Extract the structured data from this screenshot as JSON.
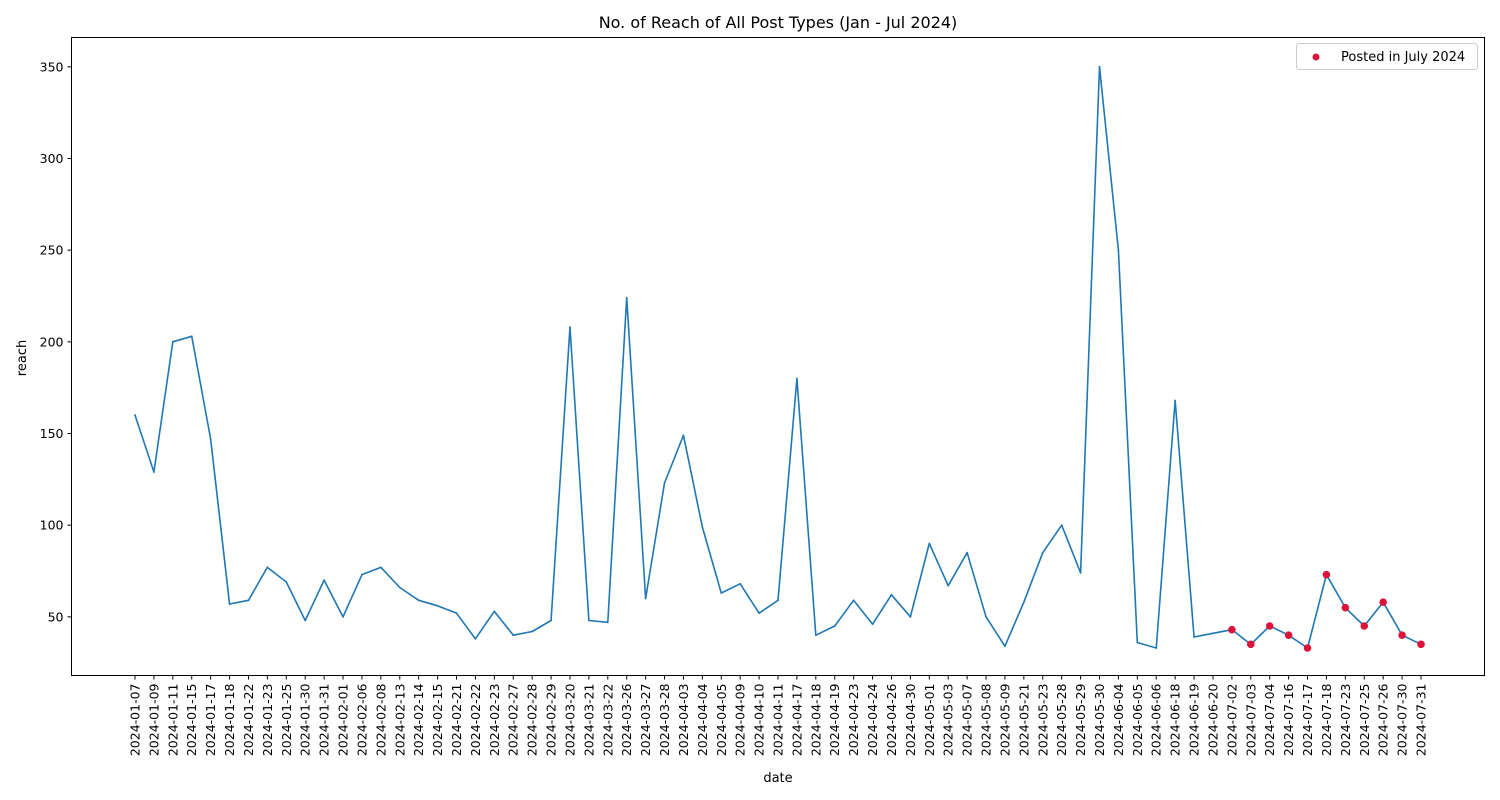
{
  "chart_data": {
    "type": "line",
    "title": "No. of Reach of All Post Types (Jan - Jul 2024)",
    "xlabel": "date",
    "ylabel": "reach",
    "ylim": [
      18,
      366
    ],
    "yticks": [
      50,
      100,
      150,
      200,
      250,
      300,
      350
    ],
    "grid": false,
    "legend_position": "top-right",
    "x": [
      "2024-01-07",
      "2024-01-09",
      "2024-01-11",
      "2024-01-15",
      "2024-01-17",
      "2024-01-18",
      "2024-01-22",
      "2024-01-23",
      "2024-01-25",
      "2024-01-30",
      "2024-01-31",
      "2024-02-01",
      "2024-02-06",
      "2024-02-08",
      "2024-02-13",
      "2024-02-14",
      "2024-02-15",
      "2024-02-21",
      "2024-02-22",
      "2024-02-23",
      "2024-02-27",
      "2024-02-28",
      "2024-02-29",
      "2024-03-20",
      "2024-03-21",
      "2024-03-22",
      "2024-03-26",
      "2024-03-27",
      "2024-03-28",
      "2024-04-03",
      "2024-04-04",
      "2024-04-05",
      "2024-04-09",
      "2024-04-10",
      "2024-04-11",
      "2024-04-17",
      "2024-04-18",
      "2024-04-19",
      "2024-04-23",
      "2024-04-24",
      "2024-04-26",
      "2024-04-30",
      "2024-05-01",
      "2024-05-03",
      "2024-05-07",
      "2024-05-08",
      "2024-05-09",
      "2024-05-21",
      "2024-05-23",
      "2024-05-28",
      "2024-05-29",
      "2024-05-30",
      "2024-06-04",
      "2024-06-05",
      "2024-06-06",
      "2024-06-18",
      "2024-06-19",
      "2024-06-20",
      "2024-07-02",
      "2024-07-03",
      "2024-07-04",
      "2024-07-16",
      "2024-07-17",
      "2024-07-18",
      "2024-07-23",
      "2024-07-25",
      "2024-07-26",
      "2024-07-30",
      "2024-07-31"
    ],
    "series": [
      {
        "values": [
          160,
          129,
          200,
          203,
          147,
          57,
          59,
          77,
          69,
          48,
          70,
          50,
          73,
          77,
          66,
          59,
          56,
          52,
          38,
          53,
          40,
          42,
          48,
          208,
          48,
          47,
          224,
          60,
          123,
          149,
          99,
          63,
          68,
          52,
          59,
          180,
          40,
          45,
          59,
          46,
          62,
          50,
          90,
          67,
          85,
          50,
          34,
          58,
          85,
          100,
          74,
          350,
          250,
          36,
          33,
          168,
          39,
          41,
          43,
          35,
          45,
          40,
          33,
          73,
          55,
          45,
          58,
          40,
          35
        ],
        "color": "#1f77b4"
      }
    ],
    "highlight": {
      "name": "Posted in July 2024",
      "color": "#dc143c",
      "x": [
        "2024-07-02",
        "2024-07-03",
        "2024-07-04",
        "2024-07-16",
        "2024-07-17",
        "2024-07-18",
        "2024-07-23",
        "2024-07-25",
        "2024-07-26",
        "2024-07-30",
        "2024-07-31"
      ],
      "values": [
        43,
        35,
        45,
        40,
        33,
        73,
        55,
        45,
        58,
        40,
        35
      ]
    }
  }
}
